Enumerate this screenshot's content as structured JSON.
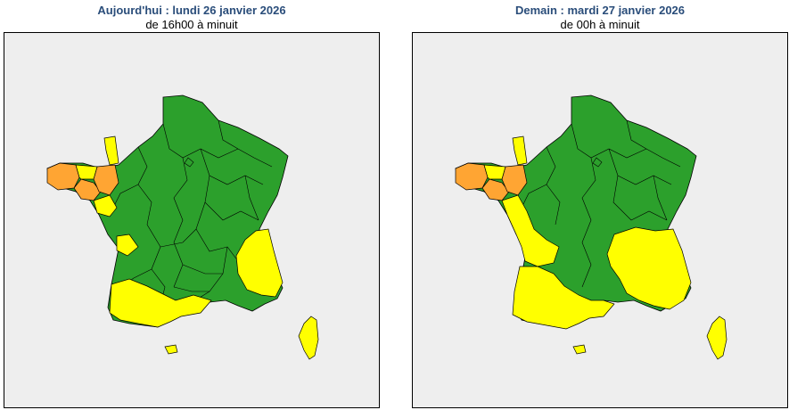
{
  "colors": {
    "green": "#2ca02c",
    "yellow": "#ffff00",
    "orange": "#ffa533",
    "background": "#eeeeee",
    "title": "#2a4d7a"
  },
  "panels": [
    {
      "title": "Aujourd'hui : lundi 26 janvier 2026",
      "subtitle": "de 16h00 à minuit"
    },
    {
      "title": "Demain : mardi 27 janvier 2026",
      "subtitle": "de 00h à minuit"
    }
  ]
}
